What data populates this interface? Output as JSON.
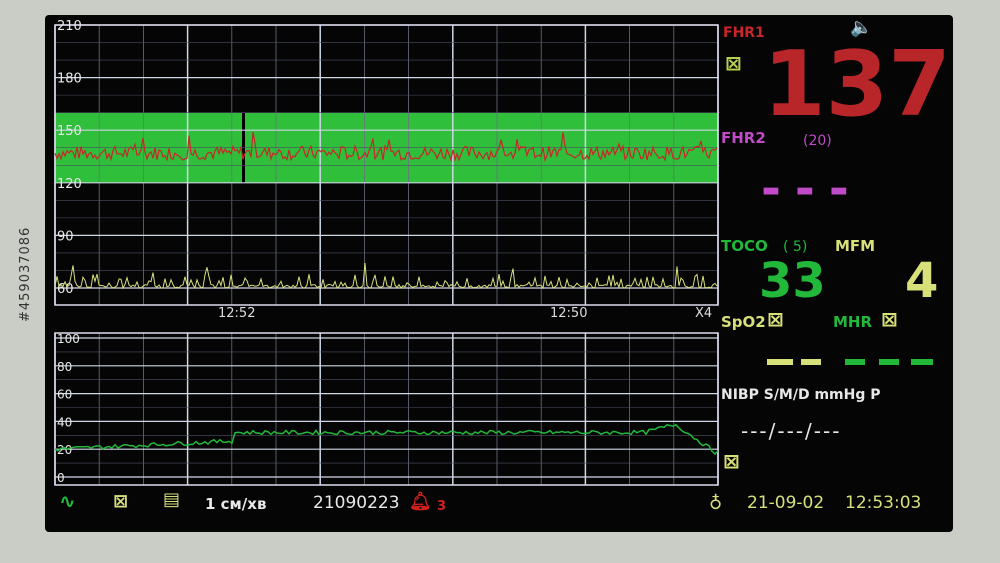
{
  "side_text": "#459037086",
  "fhr_chart": {
    "y_ticks": [
      210,
      180,
      150,
      120,
      90,
      60
    ],
    "band": [
      120,
      160
    ],
    "time_labels": [
      "12:52",
      "12:50"
    ],
    "speed": "X4"
  },
  "toco_chart": {
    "y_ticks": [
      100,
      80,
      60,
      40,
      20,
      0
    ]
  },
  "panel": {
    "fhr1_label": "FHR1",
    "fhr1_value": "137",
    "fhr2_label": "FHR2",
    "fhr2_sub": "(20)",
    "fhr2_value": "---",
    "toco_label": "TOCO",
    "toco_sub": "( 5)",
    "toco_value": "33",
    "mfm_label": "MFM",
    "mfm_value": "4",
    "spo2_label": "SpO2",
    "mhr_label": "MHR",
    "nibp_label": "NIBP S/M/D  mmHg P",
    "nibp_value": "---/---/---"
  },
  "status_bar": {
    "speed": "1 см/хв",
    "id": "21090223",
    "alarm_count": "3",
    "date": "21-09-02",
    "time": "12:53:03"
  },
  "colors": {
    "fhr1": "#c8262a",
    "fhr2": "#c04ac8",
    "toco": "#22b83a",
    "mfm": "#d8e07a",
    "band": "#2fbf3a"
  }
}
